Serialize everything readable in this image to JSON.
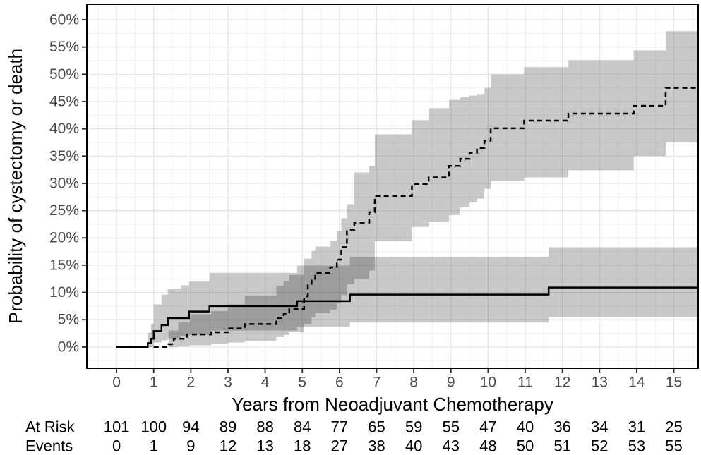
{
  "figure": {
    "y_axis_title": "Probability of cystectomy or death",
    "x_axis_title": "Years from Neoadjuvant Chemotherapy",
    "risk_table": {
      "rows": [
        {
          "label": "At Risk",
          "values": [
            101,
            100,
            94,
            89,
            88,
            84,
            77,
            65,
            59,
            55,
            47,
            40,
            36,
            34,
            31,
            25
          ]
        },
        {
          "label": "Events",
          "values": [
            0,
            1,
            9,
            12,
            13,
            18,
            27,
            38,
            40,
            43,
            48,
            50,
            51,
            52,
            53,
            55
          ]
        }
      ]
    }
  },
  "chart_data": {
    "type": "line",
    "subtype": "cumulative-incidence-step-curves-with-confidence-bands",
    "title": "",
    "xlabel": "Years from Neoadjuvant Chemotherapy",
    "ylabel": "Probability of cystectomy or death",
    "xlim": [
      -0.8,
      15.655
    ],
    "ylim_pct": [
      -3.9,
      62.85
    ],
    "x_ticks": [
      0,
      1,
      2,
      3,
      4,
      5,
      6,
      7,
      8,
      9,
      10,
      11,
      12,
      13,
      14,
      15
    ],
    "y_ticks_pct": [
      0,
      5,
      10,
      15,
      20,
      25,
      30,
      35,
      40,
      45,
      50,
      55,
      60
    ],
    "grid": "major+minor",
    "legend": "none",
    "end_x": 15.655,
    "series": [
      {
        "name": "solid-curve",
        "style": "solid",
        "steps_year_pct": [
          [
            0,
            0
          ],
          [
            0.84,
            0.7
          ],
          [
            0.93,
            1.5
          ],
          [
            1.0,
            2.9
          ],
          [
            1.21,
            4.0
          ],
          [
            1.38,
            5.3
          ],
          [
            1.95,
            6.5
          ],
          [
            2.5,
            7.5
          ],
          [
            4.86,
            8.4
          ],
          [
            6.28,
            9.6
          ],
          [
            11.63,
            10.9
          ]
        ],
        "ci_year_lo_hi_pct": [
          [
            0.84,
            0,
            2.6
          ],
          [
            0.93,
            0,
            4.2
          ],
          [
            1.0,
            0.8,
            7.8
          ],
          [
            1.21,
            1.2,
            9.6
          ],
          [
            1.38,
            1.6,
            10.6
          ],
          [
            1.73,
            1.9,
            11.3
          ],
          [
            1.95,
            2.2,
            12.0
          ],
          [
            2.5,
            3.0,
            13.6
          ],
          [
            4.86,
            3.7,
            14.9
          ],
          [
            6.28,
            4.5,
            16.5
          ],
          [
            11.63,
            5.5,
            18.3
          ]
        ]
      },
      {
        "name": "dashed-curve",
        "style": "dashed",
        "steps_year_pct": [
          [
            1.0,
            0
          ],
          [
            1.4,
            0.5
          ],
          [
            1.54,
            1.5
          ],
          [
            1.89,
            2.3
          ],
          [
            2.55,
            2.7
          ],
          [
            3.0,
            3.4
          ],
          [
            3.45,
            4.2
          ],
          [
            4.3,
            5.3
          ],
          [
            4.5,
            6.1
          ],
          [
            4.65,
            7.0
          ],
          [
            5.05,
            9.3
          ],
          [
            5.15,
            11.3
          ],
          [
            5.25,
            12.5
          ],
          [
            5.35,
            13.6
          ],
          [
            5.75,
            14.6
          ],
          [
            5.93,
            16.0
          ],
          [
            6.05,
            18.3
          ],
          [
            6.2,
            21.5
          ],
          [
            6.4,
            22.8
          ],
          [
            6.8,
            24.7
          ],
          [
            6.95,
            27.7
          ],
          [
            7.95,
            29.9
          ],
          [
            8.4,
            31.1
          ],
          [
            8.95,
            33.2
          ],
          [
            9.25,
            34.5
          ],
          [
            9.5,
            35.6
          ],
          [
            9.7,
            36.5
          ],
          [
            9.9,
            37.8
          ],
          [
            10.07,
            40.1
          ],
          [
            10.97,
            41.5
          ],
          [
            12.16,
            42.8
          ],
          [
            13.92,
            44.2
          ],
          [
            14.78,
            47.5
          ]
        ],
        "ci_year_lo_hi_pct": [
          [
            1.4,
            0,
            3.0
          ],
          [
            1.66,
            0.1,
            4.6
          ],
          [
            1.97,
            0.3,
            6.0
          ],
          [
            2.55,
            0.5,
            6.6
          ],
          [
            3.0,
            0.8,
            7.8
          ],
          [
            3.45,
            1.1,
            9.4
          ],
          [
            4.3,
            1.8,
            11.2
          ],
          [
            4.5,
            2.2,
            12.1
          ],
          [
            4.65,
            2.7,
            13.2
          ],
          [
            5.05,
            4.2,
            16.2
          ],
          [
            5.25,
            5.5,
            17.6
          ],
          [
            5.35,
            6.2,
            18.4
          ],
          [
            5.75,
            6.8,
            19.4
          ],
          [
            5.93,
            8.0,
            21.2
          ],
          [
            6.05,
            9.5,
            23.6
          ],
          [
            6.2,
            11.5,
            26.2
          ],
          [
            6.4,
            12.5,
            32.0
          ],
          [
            6.8,
            14.0,
            33.2
          ],
          [
            6.95,
            19.4,
            39.0
          ],
          [
            7.95,
            22.0,
            41.6
          ],
          [
            8.4,
            23.0,
            43.8
          ],
          [
            8.95,
            24.2,
            45.3
          ],
          [
            9.25,
            25.6,
            45.8
          ],
          [
            9.5,
            26.5,
            46.1
          ],
          [
            9.7,
            27.2,
            46.4
          ],
          [
            9.9,
            29.0,
            47.5
          ],
          [
            10.07,
            30.5,
            50.0
          ],
          [
            10.97,
            31.1,
            51.3
          ],
          [
            12.16,
            32.4,
            52.6
          ],
          [
            13.92,
            35.0,
            54.4
          ],
          [
            14.78,
            37.5,
            57.9
          ]
        ]
      }
    ],
    "colors": {
      "curve": "#000000",
      "band_fill": "rgba(0,0,0,0.21)",
      "grid_major": "#e5e5e5",
      "grid_minor": "#f2f2f2",
      "panel_border": "#000000",
      "tick_mark": "#222222",
      "tick_label": "#4a4a4a"
    }
  }
}
